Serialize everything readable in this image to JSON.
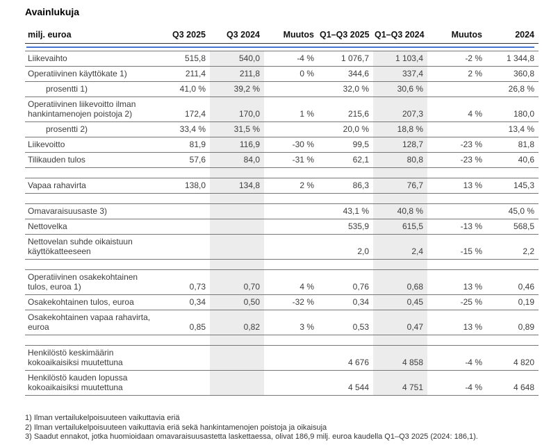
{
  "title": "Avainlukuja",
  "table": {
    "columns": [
      "milj. euroa",
      "Q3 2025",
      "Q3 2024",
      "Muutos",
      "Q1–Q3 2025",
      "Q1–Q3 2024",
      "Muutos",
      "2024"
    ],
    "shaded_columns": [
      1,
      4
    ],
    "rows": [
      {
        "label": "Liikevaihto",
        "values": [
          "515,8",
          "540,0",
          "-4 %",
          "1 076,7",
          "1 103,4",
          "-2 %",
          "1 344,8"
        ]
      },
      {
        "label": "Operatiivinen käyttökate 1)",
        "values": [
          "211,4",
          "211,8",
          "0 %",
          "344,6",
          "337,4",
          "2 %",
          "360,8"
        ]
      },
      {
        "label": "prosentti 1)",
        "indent": true,
        "values": [
          "41,0 %",
          "39,2 %",
          "",
          "32,0 %",
          "30,6 %",
          "",
          "26,8 %"
        ]
      },
      {
        "label": "Operatiivinen liikevoitto ilman hankintamenojen poistoja 2)",
        "values": [
          "172,4",
          "170,0",
          "1 %",
          "215,6",
          "207,3",
          "4 %",
          "180,0"
        ]
      },
      {
        "label": "prosentti 2)",
        "indent": true,
        "values": [
          "33,4 %",
          "31,5 %",
          "",
          "20,0 %",
          "18,8 %",
          "",
          "13,4 %"
        ]
      },
      {
        "label": "Liikevoitto",
        "values": [
          "81,9",
          "116,9",
          "-30 %",
          "99,5",
          "128,7",
          "-23 %",
          "81,8"
        ]
      },
      {
        "label": "Tilikauden tulos",
        "values": [
          "57,6",
          "84,0",
          "-31 %",
          "62,1",
          "80,8",
          "-23 %",
          "40,6"
        ]
      },
      {
        "spacer": true
      },
      {
        "label": "Vapaa rahavirta",
        "values": [
          "138,0",
          "134,8",
          "2 %",
          "86,3",
          "76,7",
          "13 %",
          "145,3"
        ]
      },
      {
        "spacer": true
      },
      {
        "label": "Omavaraisuusaste 3)",
        "values": [
          "",
          "",
          "",
          "43,1 %",
          "40,8 %",
          "",
          "45,0 %"
        ]
      },
      {
        "label": "Nettovelka",
        "values": [
          "",
          "",
          "",
          "535,9",
          "615,5",
          "-13 %",
          "568,5"
        ]
      },
      {
        "label": "Nettovelan suhde oikaistuun käyttökatteeseen",
        "values": [
          "",
          "",
          "",
          "2,0",
          "2,4",
          "-15 %",
          "2,2"
        ]
      },
      {
        "spacer": true
      },
      {
        "label": "Operatiivinen osakekohtainen tulos, euroa 1)",
        "values": [
          "0,73",
          "0,70",
          "4 %",
          "0,76",
          "0,68",
          "13 %",
          "0,46"
        ]
      },
      {
        "label": "Osakekohtainen tulos, euroa",
        "values": [
          "0,34",
          "0,50",
          "-32 %",
          "0,34",
          "0,45",
          "-25 %",
          "0,19"
        ]
      },
      {
        "label": "Osakekohtainen vapaa rahavirta, euroa",
        "values": [
          "0,85",
          "0,82",
          "3 %",
          "0,53",
          "0,47",
          "13 %",
          "0,89"
        ]
      },
      {
        "spacer": true
      },
      {
        "label": "Henkilöstö keskimäärin kokoaikaisiksi muutettuna",
        "values": [
          "",
          "",
          "",
          "4 676",
          "4 858",
          "-4 %",
          "4 820"
        ]
      },
      {
        "label": "Henkilöstö kauden lopussa kokoaikaisiksi muutettuna",
        "values": [
          "",
          "",
          "",
          "4 544",
          "4 751",
          "-4 %",
          "4 648"
        ]
      }
    ]
  },
  "footnotes": [
    "1) Ilman vertailukelpoisuuteen vaikuttavia eriä",
    "2) Ilman vertailukelpoisuuteen vaikuttavia eriä sekä hankintamenojen poistoja ja oikaisuja",
    "3) Saadut ennakot, jotka huomioidaan omavaraisuusastetta laskettaessa, olivat 186,9 milj. euroa kaudella Q1–Q3 2025 (2024: 186,1)."
  ],
  "colors": {
    "accent_blue": "#4573d1",
    "column_shade": "#ececec",
    "row_border": "#767676",
    "header_border": "#303030"
  }
}
